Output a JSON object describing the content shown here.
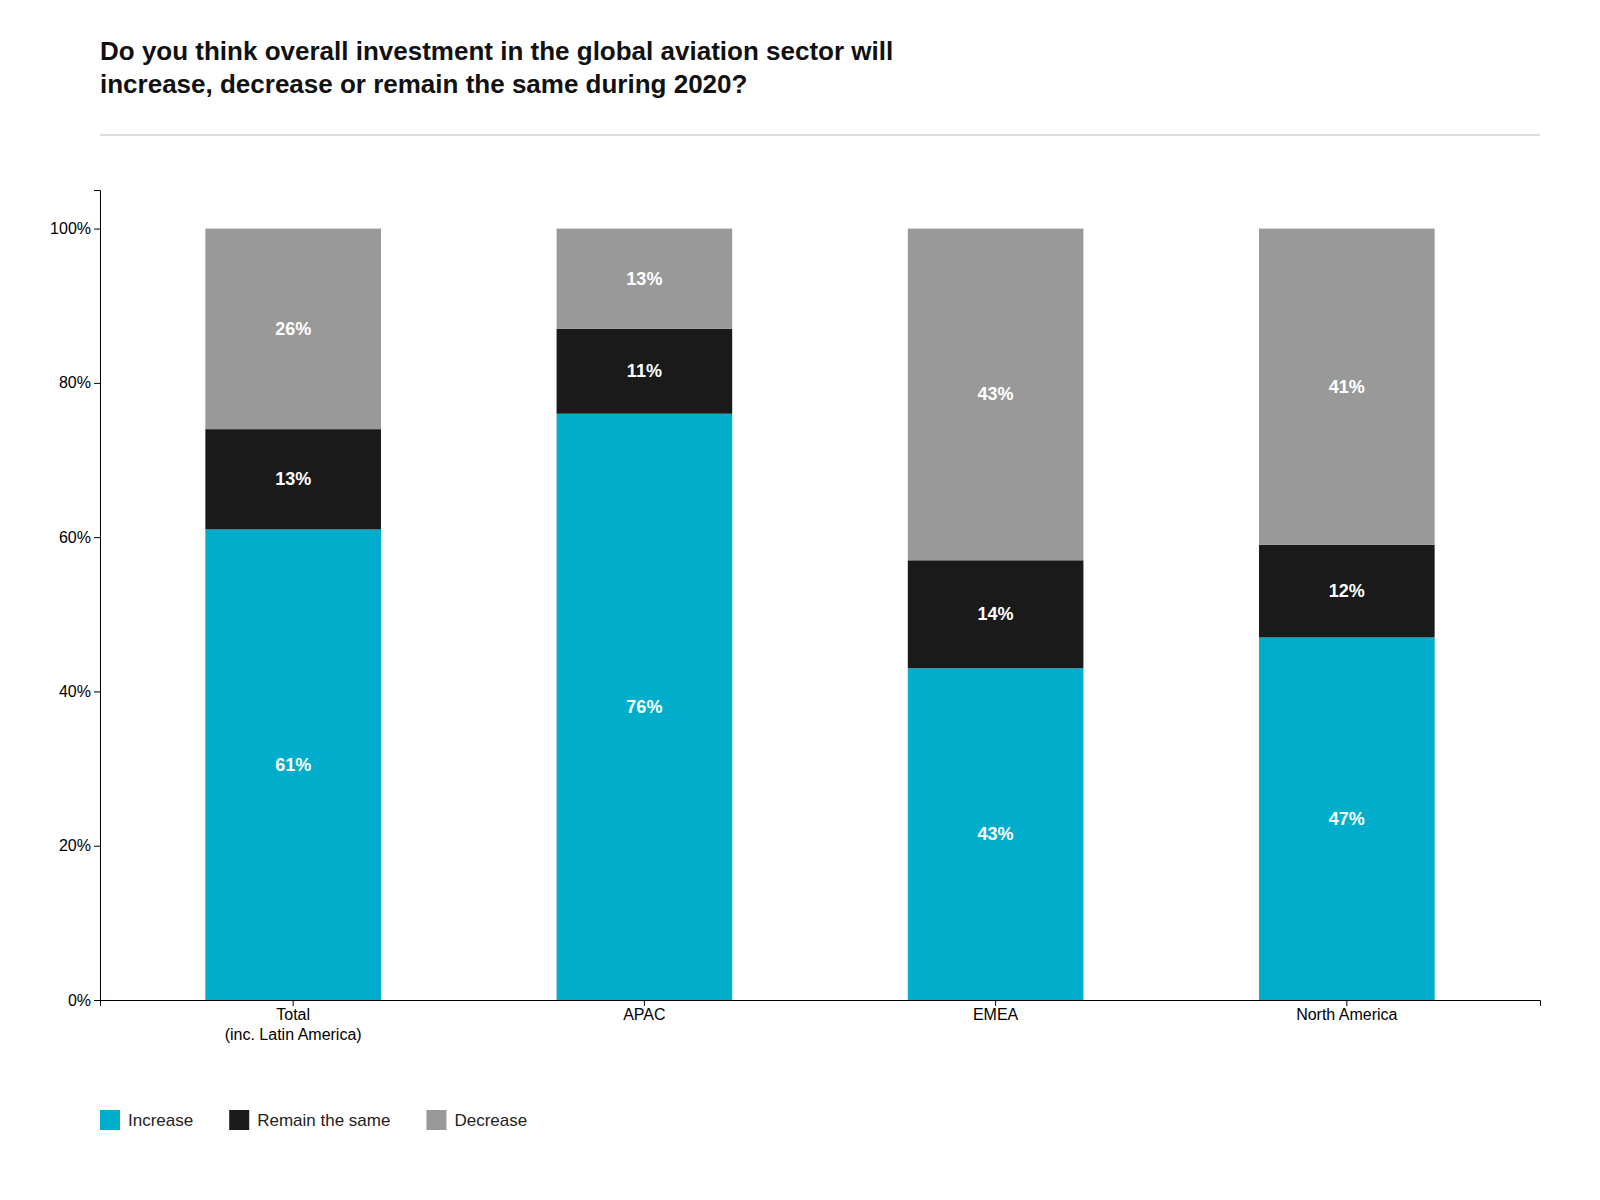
{
  "chart_data": {
    "type": "bar",
    "title": "Do you think overall investment in the global aviation sector will\nincrease, decrease or remain the same during 2020?",
    "categories": [
      "Total\n(inc. Latin America)",
      "APAC",
      "EMEA",
      "North America"
    ],
    "series": [
      {
        "name": "Increase",
        "color": "#00AECC",
        "values": [
          61,
          76,
          43,
          47
        ],
        "value_labels": [
          "61%",
          "76%",
          "43%",
          "47%"
        ]
      },
      {
        "name": "Remain the same",
        "color": "#1a1a1a",
        "values": [
          13,
          11,
          14,
          12
        ],
        "value_labels": [
          "13%",
          "11%",
          "14%",
          "12%"
        ]
      },
      {
        "name": "Decrease",
        "color": "#999999",
        "values": [
          26,
          13,
          43,
          41
        ],
        "value_labels": [
          "26%",
          "13%",
          "43%",
          "41%"
        ]
      }
    ],
    "stacked": true,
    "data_labels": true,
    "ylim": [
      0,
      105
    ],
    "yticks": [
      {
        "value": 0,
        "label": "0%"
      },
      {
        "value": 20,
        "label": "20%"
      },
      {
        "value": 40,
        "label": "40%"
      },
      {
        "value": 60,
        "label": "60%"
      },
      {
        "value": 80,
        "label": "80%"
      },
      {
        "value": 100,
        "label": "100%"
      }
    ],
    "grid": false,
    "legend": "bottom"
  }
}
